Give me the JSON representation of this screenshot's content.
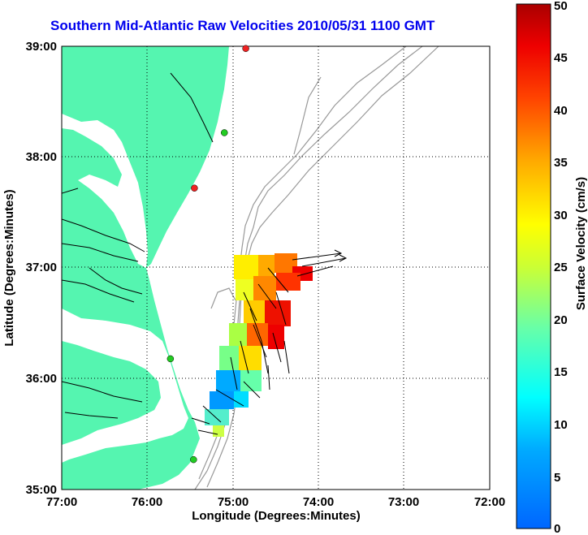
{
  "title": "Southern Mid-Atlantic Raw Velocities 2010/05/31 1100 GMT",
  "x_axis": {
    "label": "Longitude (Degrees:Minutes)",
    "ticks": [
      "77:00",
      "76:00",
      "75:00",
      "74:00",
      "73:00",
      "72:00"
    ]
  },
  "y_axis": {
    "label": "Latitude (Degrees:Minutes)",
    "ticks": [
      "39:00",
      "38:00",
      "37:00",
      "36:00",
      "35:00"
    ]
  },
  "colorbar": {
    "label": "Surface Velocity (cm/s)",
    "ticks": [
      "0",
      "5",
      "10",
      "15",
      "20",
      "25",
      "30",
      "35",
      "40",
      "45",
      "50"
    ],
    "min": 0,
    "max": 50
  },
  "colors": {
    "land": "#55f5b0",
    "ocean": "#ffffff",
    "title": "#0000ee",
    "bathymetry": "#999999",
    "station_green": "#22cc22",
    "station_red": "#ee2222"
  },
  "map_extent": {
    "lon": [
      -77,
      -72
    ],
    "lat": [
      35,
      39
    ]
  },
  "stations": [
    {
      "lon": -74.85,
      "lat": 38.98,
      "color": "red"
    },
    {
      "lon": -75.1,
      "lat": 38.22,
      "color": "green"
    },
    {
      "lon": -75.45,
      "lat": 37.72,
      "color": "red"
    },
    {
      "lon": -75.73,
      "lat": 36.18,
      "color": "green"
    },
    {
      "lon": -75.46,
      "lat": 35.27,
      "color": "green"
    }
  ]
}
